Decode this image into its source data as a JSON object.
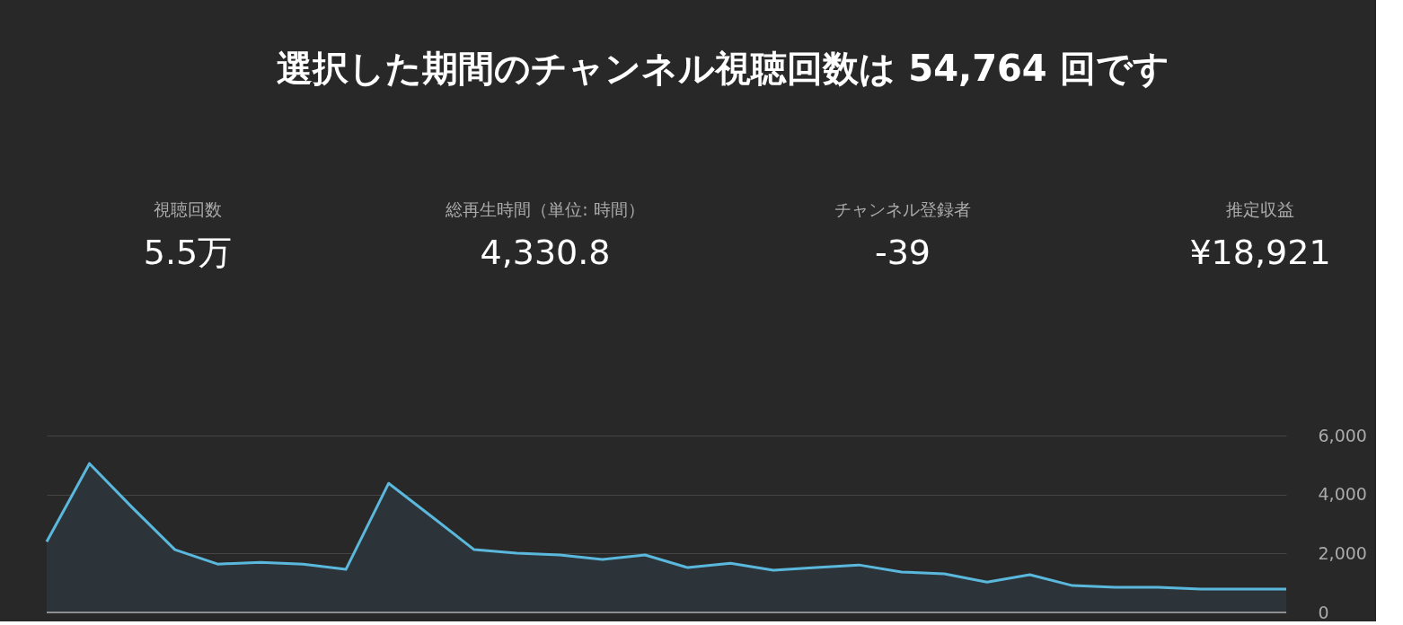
{
  "chart_data": {
    "type": "area",
    "title": "選択した期間のチャンネル視聴回数は 54,764 回です",
    "annotations": [
      "視聴回数",
      "5.5万",
      "総再生時間（単位: 時間）",
      "4,330.8",
      "チャンネル登録者",
      "-39",
      "推定収益",
      "¥18,921"
    ],
    "categories": [
      null,
      null,
      null,
      null,
      null,
      null,
      null,
      null,
      null,
      null,
      null,
      null,
      null,
      null,
      null,
      null,
      null,
      null,
      null,
      null,
      null,
      null,
      null,
      null,
      null,
      null,
      null,
      null,
      null,
      null
    ],
    "series": [
      {
        "color": "#5bb8dd",
        "values": [
          2400,
          5050,
          3560,
          2130,
          1640,
          1700,
          1640,
          1460,
          4380,
          3260,
          2130,
          2010,
          1950,
          1800,
          1950,
          1520,
          1670,
          1430,
          1520,
          1610,
          1370,
          1310,
          1030,
          1280,
          910,
          850,
          850,
          790,
          790,
          790
        ]
      }
    ],
    "ylim": [
      0,
      6000
    ],
    "yticks": [
      {
        "value": 0,
        "label": "0"
      },
      {
        "value": 2000,
        "label": "2,000"
      },
      {
        "value": 4000,
        "label": "4,000"
      },
      {
        "value": 6000,
        "label": "6,000"
      }
    ],
    "grid": "y"
  }
}
